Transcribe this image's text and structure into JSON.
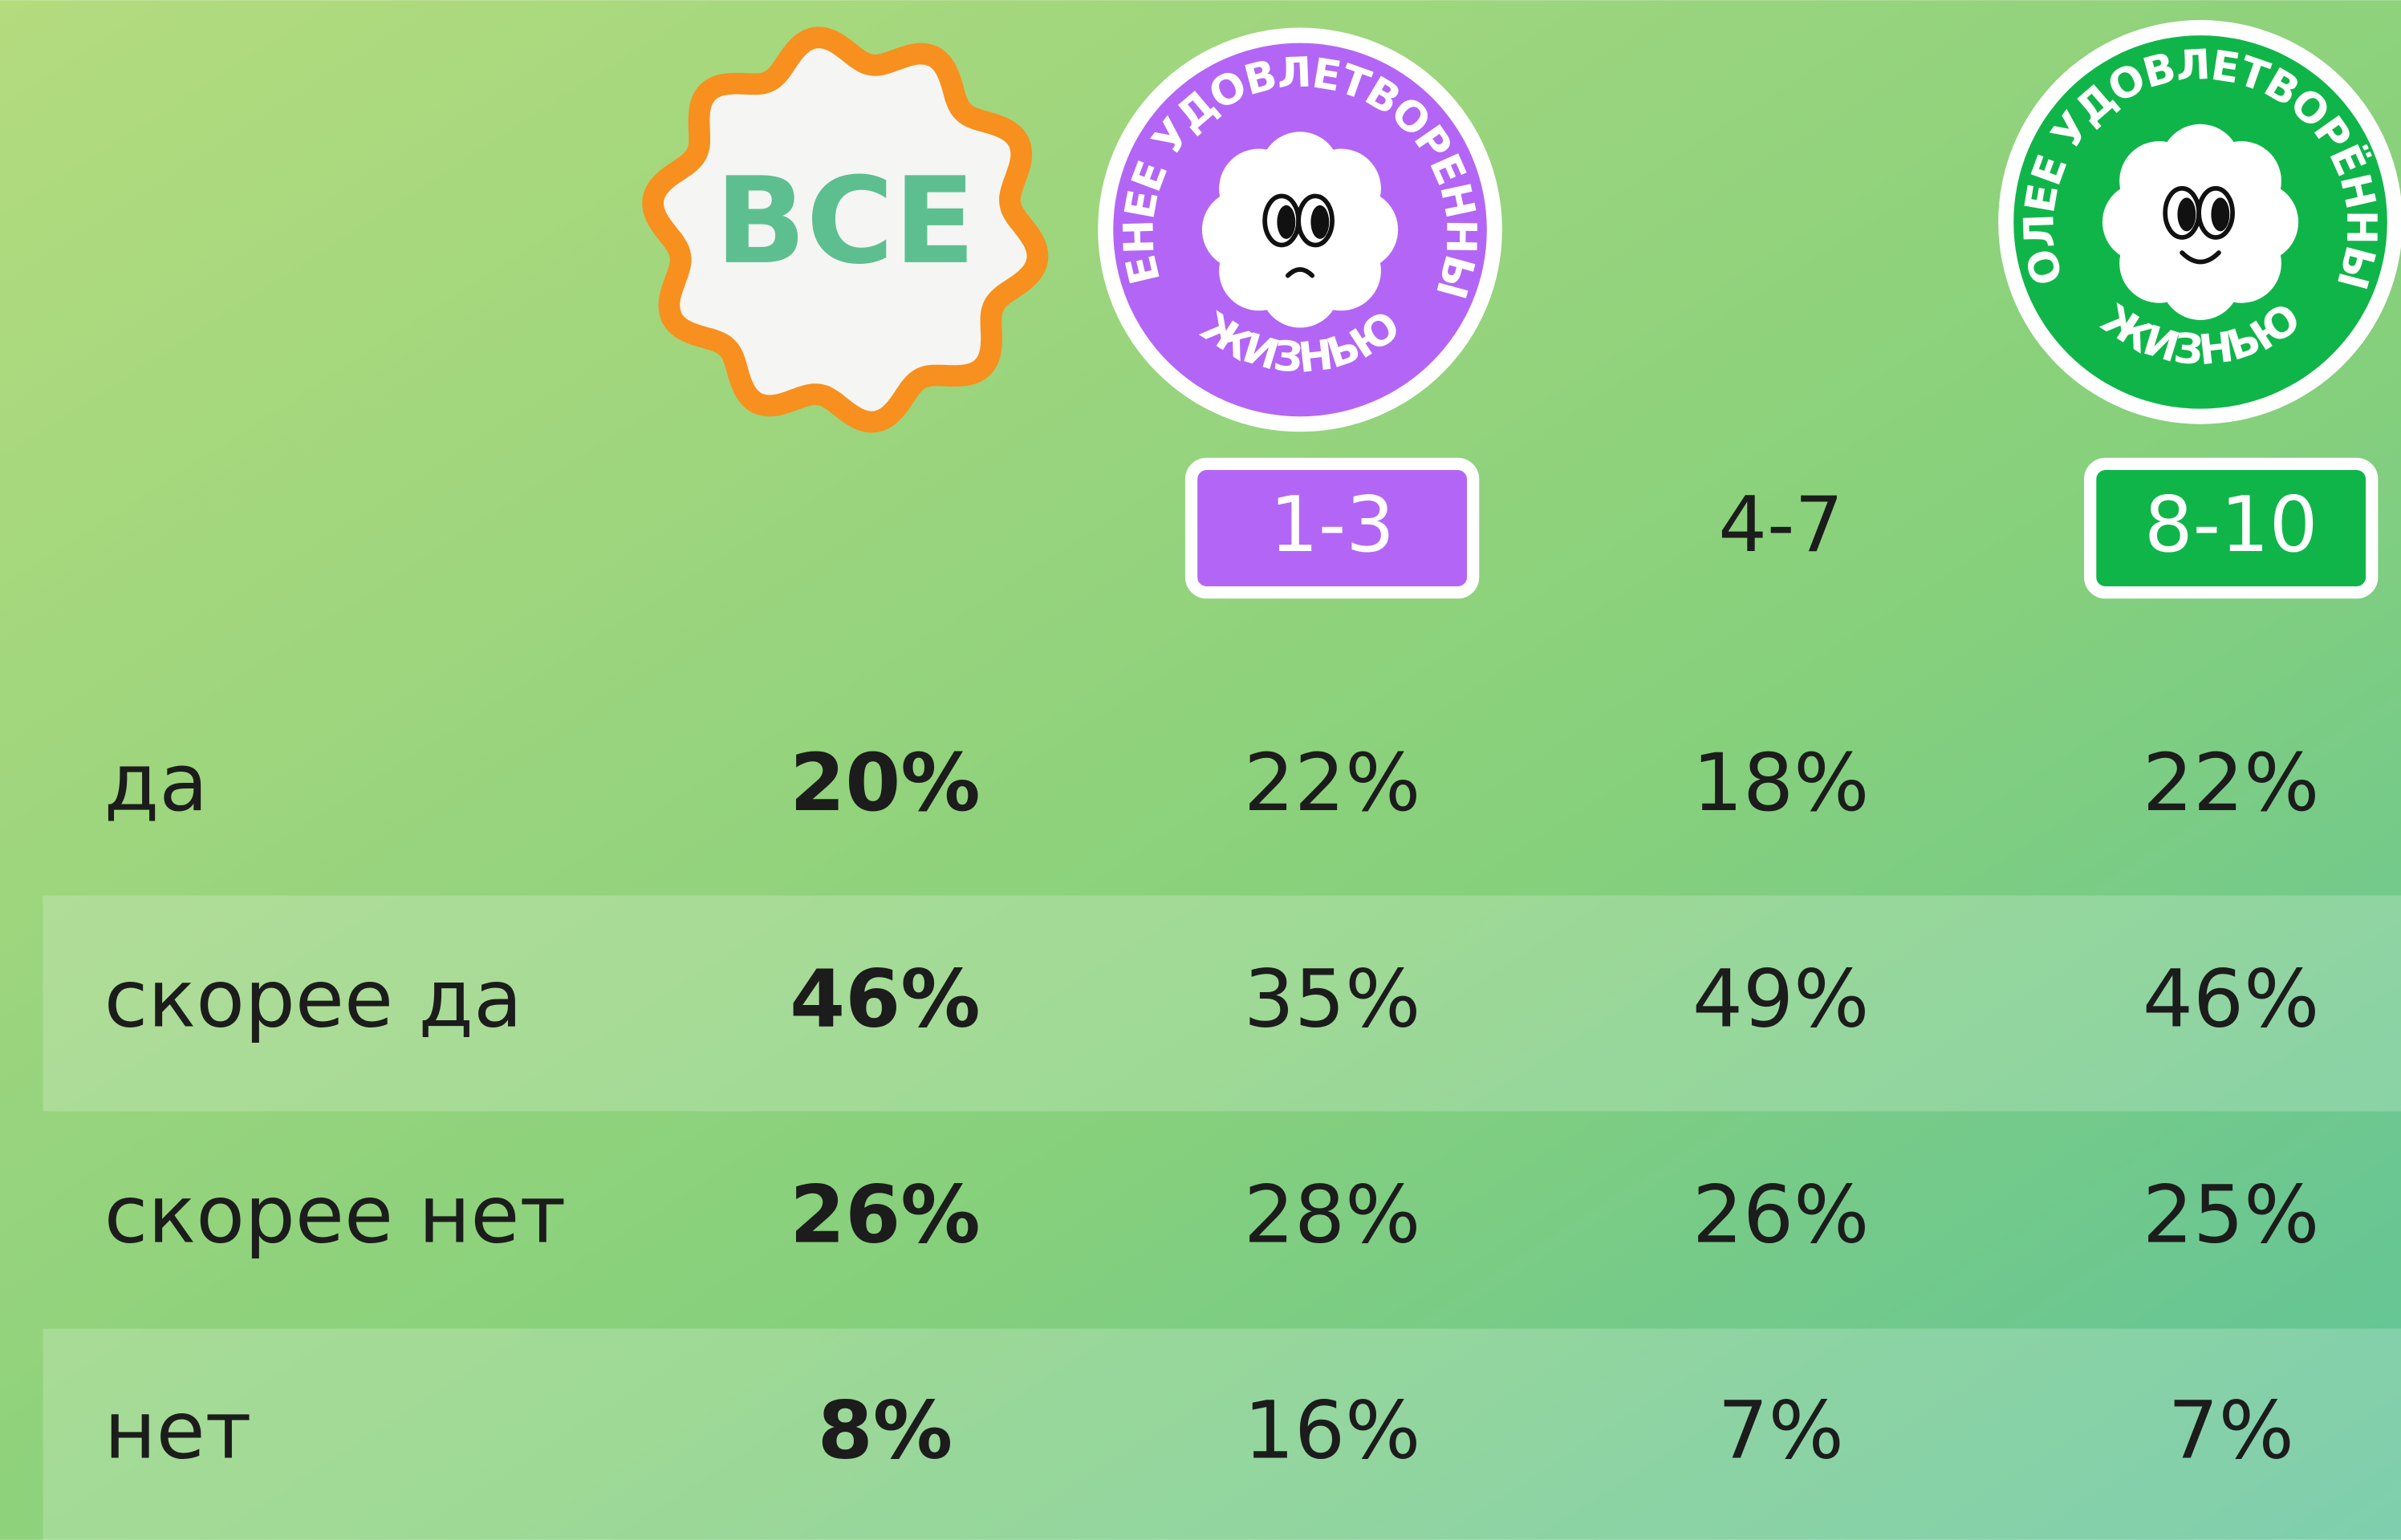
{
  "header": {
    "all_badge": "ВСЕ",
    "less_badge": {
      "top": "МЕНЕЕ УДОВЛЕТВОРЕННЫЕ",
      "bottom": "ЖИЗНЬЮ"
    },
    "more_badge": {
      "top": "БОЛЕЕ УДОВЛЕТВОРЁННЫЕ",
      "bottom": "ЖИЗНЬЮ"
    },
    "ranges": [
      "1-3",
      "4-7",
      "8-10"
    ]
  },
  "table": {
    "rows": [
      [
        "да",
        "20%",
        "22%",
        "18%",
        "22%"
      ],
      [
        "скорее да",
        "46%",
        "35%",
        "49%",
        "46%"
      ],
      [
        "скорее нет",
        "26%",
        "28%",
        "26%",
        "25%"
      ],
      [
        "нет",
        "8%",
        "16%",
        "7%",
        "7%"
      ]
    ]
  }
}
